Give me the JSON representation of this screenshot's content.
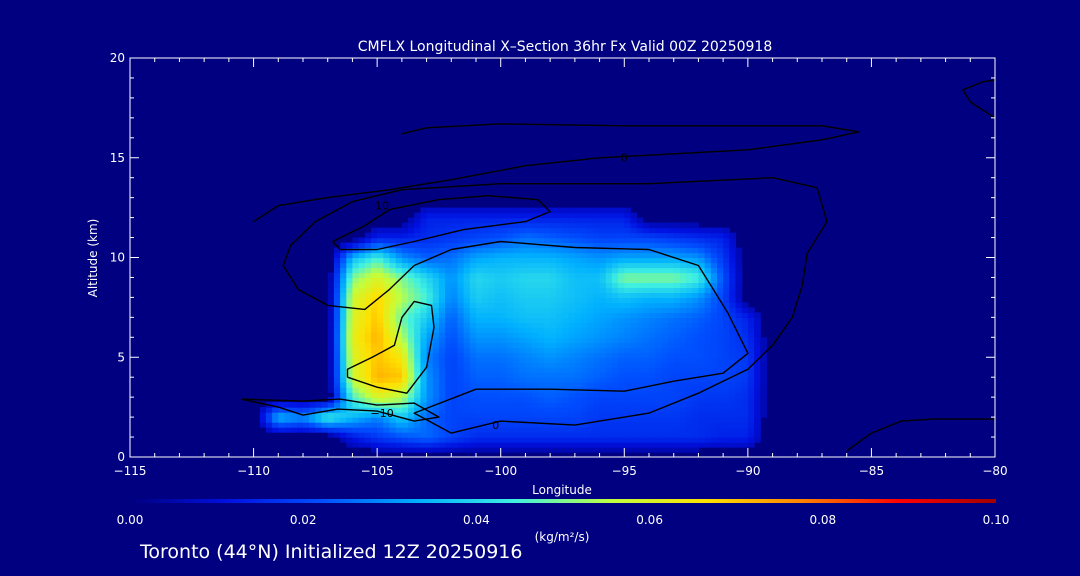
{
  "chart_data": {
    "type": "heatmap",
    "title": "CMFLX Longitudinal X–Section 36hr  Fx Valid 00Z 20250918",
    "xlabel": "Longitude",
    "ylabel": "Altitude (km)",
    "xlim": [
      -115,
      -80
    ],
    "ylim": [
      0,
      20
    ],
    "x_ticks": [
      "−115",
      "−110",
      "−105",
      "−100",
      "−95",
      "−90",
      "−85",
      "−80"
    ],
    "y_ticks": [
      "0",
      "5",
      "10",
      "15",
      "20"
    ],
    "colorbar": {
      "label": "(kg/m²/s)",
      "ticks": [
        "0.00",
        "0.02",
        "0.04",
        "0.06",
        "0.08",
        "0.10"
      ],
      "range": [
        0,
        0.1
      ],
      "colors": [
        "#000080",
        "#0010e0",
        "#0050ff",
        "#00b0ff",
        "#40f0e0",
        "#c0ff40",
        "#ffe000",
        "#ff8000",
        "#ff0000",
        "#a00000"
      ]
    },
    "field": {
      "x": [
        -115,
        -114,
        -113,
        -112,
        -111,
        -110,
        -109,
        -108,
        -107,
        -106,
        -105,
        -104,
        -103,
        -102,
        -101,
        -100,
        -99,
        -98,
        -97,
        -96,
        -95,
        -94,
        -93,
        -92,
        -91,
        -90,
        -89,
        -88,
        -87,
        -86,
        -85,
        -84,
        -83,
        -82,
        -81,
        -80
      ],
      "y": [
        0,
        1,
        2,
        3,
        4,
        5,
        6,
        7,
        8,
        9,
        10,
        11,
        12,
        13,
        14,
        15,
        16,
        17,
        18,
        19,
        20
      ],
      "values": [
        [
          0,
          0,
          0,
          0,
          0,
          0,
          0,
          0,
          0,
          0,
          0,
          0,
          0,
          0,
          0,
          0,
          0,
          0,
          0,
          0,
          0,
          0,
          0,
          0,
          0,
          0,
          0,
          0,
          0,
          0,
          0,
          0,
          0,
          0,
          0,
          0
        ],
        [
          0,
          0,
          0,
          0,
          0,
          0,
          0,
          0,
          0,
          0.012,
          0.018,
          0.022,
          0.025,
          0.02,
          0.016,
          0.016,
          0.016,
          0.016,
          0.016,
          0.016,
          0.016,
          0.016,
          0.016,
          0.016,
          0.014,
          0.014,
          0,
          0,
          0,
          0,
          0,
          0,
          0,
          0,
          0,
          0
        ],
        [
          0,
          0,
          0,
          0,
          0,
          0,
          0.035,
          0.03,
          0.045,
          0.035,
          0.028,
          0.038,
          0.025,
          0.02,
          0.02,
          0.02,
          0.02,
          0.02,
          0.02,
          0.018,
          0.018,
          0.018,
          0.018,
          0.016,
          0.016,
          0.016,
          0,
          0,
          0,
          0,
          0,
          0,
          0,
          0,
          0,
          0
        ],
        [
          0,
          0,
          0,
          0,
          0,
          0,
          0,
          0,
          0,
          0.045,
          0.06,
          0.055,
          0.03,
          0.02,
          0.022,
          0.022,
          0.022,
          0.024,
          0.022,
          0.02,
          0.02,
          0.02,
          0.02,
          0.018,
          0.018,
          0.016,
          0,
          0,
          0,
          0,
          0,
          0,
          0,
          0,
          0,
          0
        ],
        [
          0,
          0,
          0,
          0,
          0,
          0,
          0,
          0,
          0,
          0.058,
          0.072,
          0.07,
          0.03,
          0.02,
          0.024,
          0.024,
          0.026,
          0.026,
          0.026,
          0.024,
          0.022,
          0.022,
          0.02,
          0.02,
          0.02,
          0.018,
          0,
          0,
          0,
          0,
          0,
          0,
          0,
          0,
          0,
          0
        ],
        [
          0,
          0,
          0,
          0,
          0,
          0,
          0,
          0,
          0,
          0.06,
          0.07,
          0.065,
          0.028,
          0.02,
          0.026,
          0.026,
          0.028,
          0.03,
          0.028,
          0.026,
          0.024,
          0.024,
          0.022,
          0.022,
          0.02,
          0.018,
          0,
          0,
          0,
          0,
          0,
          0,
          0,
          0,
          0,
          0
        ],
        [
          0,
          0,
          0,
          0,
          0,
          0,
          0,
          0,
          0,
          0.062,
          0.072,
          0.055,
          0.032,
          0.022,
          0.03,
          0.03,
          0.032,
          0.034,
          0.032,
          0.03,
          0.028,
          0.026,
          0.024,
          0.022,
          0.02,
          0.016,
          0,
          0,
          0,
          0,
          0,
          0,
          0,
          0,
          0,
          0
        ],
        [
          0,
          0,
          0,
          0,
          0,
          0,
          0,
          0,
          0,
          0.06,
          0.07,
          0.048,
          0.038,
          0.024,
          0.034,
          0.034,
          0.036,
          0.036,
          0.034,
          0.032,
          0.03,
          0.028,
          0.026,
          0.024,
          0.02,
          0.014,
          0,
          0,
          0,
          0,
          0,
          0,
          0,
          0,
          0,
          0
        ],
        [
          0,
          0,
          0,
          0,
          0,
          0,
          0,
          0,
          0,
          0.058,
          0.068,
          0.055,
          0.045,
          0.028,
          0.038,
          0.036,
          0.038,
          0.038,
          0.036,
          0.034,
          0.036,
          0.034,
          0.034,
          0.03,
          0.02,
          0,
          0,
          0,
          0,
          0,
          0,
          0,
          0,
          0,
          0,
          0
        ],
        [
          0,
          0,
          0,
          0,
          0,
          0,
          0,
          0,
          0,
          0.05,
          0.06,
          0.05,
          0.04,
          0.03,
          0.04,
          0.038,
          0.04,
          0.04,
          0.036,
          0.036,
          0.05,
          0.05,
          0.05,
          0.045,
          0.022,
          0,
          0,
          0,
          0,
          0,
          0,
          0,
          0,
          0,
          0,
          0
        ],
        [
          0,
          0,
          0,
          0,
          0,
          0,
          0,
          0,
          0,
          0.035,
          0.045,
          0.03,
          0.024,
          0.026,
          0.032,
          0.034,
          0.034,
          0.034,
          0.032,
          0.03,
          0.032,
          0.032,
          0.032,
          0.03,
          0.018,
          0,
          0,
          0,
          0,
          0,
          0,
          0,
          0,
          0,
          0,
          0
        ],
        [
          0,
          0,
          0,
          0,
          0,
          0,
          0,
          0,
          0,
          0,
          0.014,
          0.014,
          0.016,
          0.018,
          0.02,
          0.022,
          0.026,
          0.024,
          0.022,
          0.02,
          0.02,
          0.02,
          0.018,
          0.016,
          0.014,
          0,
          0,
          0,
          0,
          0,
          0,
          0,
          0,
          0,
          0,
          0
        ],
        [
          0,
          0,
          0,
          0,
          0,
          0,
          0,
          0,
          0,
          0,
          0,
          0,
          0.014,
          0.014,
          0.014,
          0.014,
          0.014,
          0.014,
          0.014,
          0.014,
          0.014,
          0,
          0,
          0,
          0,
          0,
          0,
          0,
          0,
          0,
          0,
          0,
          0,
          0,
          0,
          0
        ],
        [
          0,
          0,
          0,
          0,
          0,
          0,
          0,
          0,
          0,
          0,
          0,
          0,
          0,
          0,
          0,
          0,
          0,
          0,
          0,
          0,
          0,
          0,
          0,
          0,
          0,
          0,
          0,
          0,
          0,
          0,
          0,
          0,
          0,
          0,
          0,
          0
        ],
        [
          0,
          0,
          0,
          0,
          0,
          0,
          0,
          0,
          0,
          0,
          0,
          0,
          0,
          0,
          0,
          0,
          0,
          0,
          0,
          0,
          0,
          0,
          0,
          0,
          0,
          0,
          0,
          0,
          0,
          0,
          0,
          0,
          0,
          0,
          0,
          0
        ],
        [
          0,
          0,
          0,
          0,
          0,
          0,
          0,
          0,
          0,
          0,
          0,
          0,
          0,
          0,
          0,
          0,
          0,
          0,
          0,
          0,
          0,
          0,
          0,
          0,
          0,
          0,
          0,
          0,
          0,
          0,
          0,
          0,
          0,
          0,
          0,
          0
        ],
        [
          0,
          0,
          0,
          0,
          0,
          0,
          0,
          0,
          0,
          0,
          0,
          0,
          0,
          0,
          0,
          0,
          0,
          0,
          0,
          0,
          0,
          0,
          0,
          0,
          0,
          0,
          0,
          0,
          0,
          0,
          0,
          0,
          0,
          0,
          0,
          0
        ],
        [
          0,
          0,
          0,
          0,
          0,
          0,
          0,
          0,
          0,
          0,
          0,
          0,
          0,
          0,
          0,
          0,
          0,
          0,
          0,
          0,
          0,
          0,
          0,
          0,
          0,
          0,
          0,
          0,
          0,
          0,
          0,
          0,
          0,
          0,
          0,
          0
        ],
        [
          0,
          0,
          0,
          0,
          0,
          0,
          0,
          0,
          0,
          0,
          0,
          0,
          0,
          0,
          0,
          0,
          0,
          0,
          0,
          0,
          0,
          0,
          0,
          0,
          0,
          0,
          0,
          0,
          0,
          0,
          0,
          0,
          0,
          0,
          0,
          0
        ],
        [
          0,
          0,
          0,
          0,
          0,
          0,
          0,
          0,
          0,
          0,
          0,
          0,
          0,
          0,
          0,
          0,
          0,
          0,
          0,
          0,
          0,
          0,
          0,
          0,
          0,
          0,
          0,
          0,
          0,
          0,
          0,
          0,
          0,
          0,
          0,
          0
        ],
        [
          0,
          0,
          0,
          0,
          0,
          0,
          0,
          0,
          0,
          0,
          0,
          0,
          0,
          0,
          0,
          0,
          0,
          0,
          0,
          0,
          0,
          0,
          0,
          0,
          0,
          0,
          0,
          0,
          0,
          0,
          0,
          0,
          0,
          0,
          0,
          0
        ]
      ]
    },
    "contours": [
      {
        "label": "0",
        "label_at": [
          -100.2,
          1.4
        ],
        "points": [
          [
            -102,
            1.2
          ],
          [
            -100,
            1.8
          ],
          [
            -97,
            1.6
          ],
          [
            -94,
            2.2
          ],
          [
            -92,
            3.2
          ],
          [
            -90,
            4.4
          ],
          [
            -89,
            5.6
          ],
          [
            -88.2,
            7
          ],
          [
            -87.8,
            8.6
          ],
          [
            -87.6,
            10.2
          ],
          [
            -86.8,
            11.8
          ],
          [
            -87.2,
            13.5
          ],
          [
            -89,
            14
          ],
          [
            -94,
            13.7
          ],
          [
            -100,
            13.7
          ],
          [
            -104,
            13.4
          ],
          [
            -106,
            12.8
          ],
          [
            -107.5,
            11.8
          ],
          [
            -108.5,
            10.6
          ],
          [
            -108.8,
            9.6
          ],
          [
            -108.2,
            8.4
          ],
          [
            -107,
            7.6
          ],
          [
            -105.5,
            7.4
          ],
          [
            -104.5,
            8.4
          ],
          [
            -103.5,
            9.6
          ],
          [
            -102,
            10.4
          ],
          [
            -100,
            10.8
          ],
          [
            -97,
            10.5
          ],
          [
            -94,
            10.4
          ],
          [
            -92,
            9.6
          ],
          [
            -91.5,
            8.6
          ],
          [
            -90.8,
            7.2
          ],
          [
            -90,
            5.2
          ],
          [
            -91,
            4.2
          ],
          [
            -93,
            3.8
          ],
          [
            -95,
            3.3
          ],
          [
            -98,
            3.4
          ],
          [
            -101,
            3.4
          ],
          [
            -103.5,
            2.2
          ],
          [
            -102,
            1.2
          ]
        ]
      },
      {
        "label": "0",
        "label_at": [
          -95,
          14.8
        ],
        "points": [
          [
            -110,
            11.8
          ],
          [
            -109,
            12.6
          ],
          [
            -107,
            13
          ],
          [
            -104.5,
            13.4
          ],
          [
            -102,
            13.9
          ],
          [
            -99,
            14.6
          ],
          [
            -96,
            15
          ],
          [
            -93,
            15.2
          ],
          [
            -90,
            15.4
          ],
          [
            -87,
            15.9
          ],
          [
            -85.5,
            16.3
          ],
          [
            -87,
            16.6
          ],
          [
            -90,
            16.6
          ],
          [
            -95,
            16.6
          ],
          [
            -100,
            16.7
          ],
          [
            -103,
            16.5
          ],
          [
            -104,
            16.2
          ]
        ]
      },
      {
        "label": "10",
        "label_at": [
          -104.8,
          12.4
        ],
        "points": [
          [
            -106.8,
            10.8
          ],
          [
            -105.5,
            11.6
          ],
          [
            -104.5,
            12.4
          ],
          [
            -102.5,
            12.9
          ],
          [
            -100.5,
            13.1
          ],
          [
            -98.5,
            12.9
          ],
          [
            -98,
            12.3
          ],
          [
            -99,
            11.8
          ],
          [
            -101.5,
            11.4
          ],
          [
            -103.5,
            10.8
          ],
          [
            -105,
            10.4
          ],
          [
            -106.5,
            10.4
          ],
          [
            -106.8,
            10.8
          ]
        ]
      },
      {
        "label": "−10",
        "label_at": [
          -104.8,
          2
        ],
        "points": [
          [
            -110.5,
            2.9
          ],
          [
            -109,
            2.5
          ],
          [
            -108,
            2.1
          ],
          [
            -106.6,
            2.4
          ],
          [
            -105,
            2.3
          ],
          [
            -103.5,
            1.8
          ],
          [
            -102.5,
            2
          ],
          [
            -103.5,
            2.7
          ],
          [
            -105,
            2.6
          ],
          [
            -106.5,
            2.9
          ],
          [
            -108,
            2.8
          ],
          [
            -110.5,
            2.9
          ]
        ]
      },
      {
        "label": "",
        "label_at": [
          -104,
          5
        ],
        "points": [
          [
            -106.2,
            4
          ],
          [
            -105,
            3.5
          ],
          [
            -103.8,
            3.2
          ],
          [
            -103,
            4.5
          ],
          [
            -102.7,
            6.5
          ],
          [
            -102.8,
            7.6
          ],
          [
            -103.5,
            7.8
          ],
          [
            -104,
            7
          ],
          [
            -104.3,
            5.6
          ],
          [
            -105.2,
            5
          ],
          [
            -106.2,
            4.4
          ],
          [
            -106.2,
            4
          ]
        ]
      },
      {
        "label": "",
        "label_at": [
          -82,
          1.6
        ],
        "points": [
          [
            -86,
            0.3
          ],
          [
            -85,
            1.2
          ],
          [
            -83.8,
            1.8
          ],
          [
            -82.5,
            1.9
          ],
          [
            -81,
            1.9
          ],
          [
            -80,
            1.9
          ]
        ]
      },
      {
        "label": "",
        "label_at": [
          -80.5,
          18.2
        ],
        "points": [
          [
            -80,
            17
          ],
          [
            -81,
            17.8
          ],
          [
            -81.3,
            18.4
          ],
          [
            -80.5,
            18.8
          ],
          [
            -80,
            18.9
          ]
        ]
      }
    ]
  },
  "footer": "Toronto (44°N) Initialized 12Z 20250916"
}
